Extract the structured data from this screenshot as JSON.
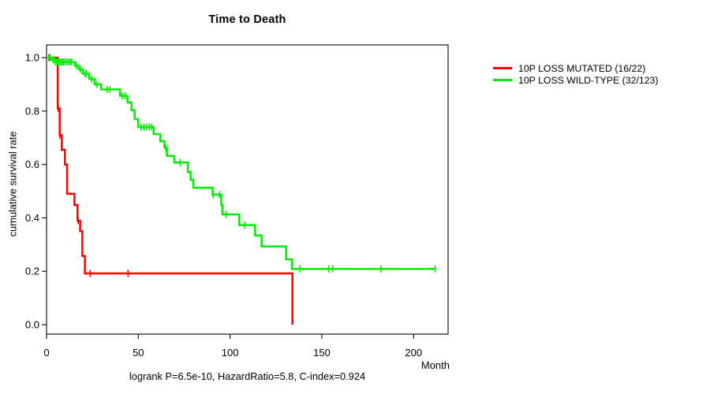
{
  "title": "Time to Death",
  "caption": "logrank P=6.5e-10, HazardRatio=5.8, C-index=0.924",
  "x_axis": {
    "label": "Month",
    "ticks": [
      0,
      50,
      100,
      150,
      200
    ]
  },
  "y_axis": {
    "label": "cumulative survival rate",
    "ticks": [
      "0.0",
      "0.2",
      "0.4",
      "0.6",
      "0.8",
      "1.0"
    ]
  },
  "chart_data": {
    "type": "line",
    "subtype": "kaplan-meier-step",
    "title": "Time to Death",
    "xlabel": "Month",
    "ylabel": "cumulative survival rate",
    "xlim": [
      0,
      219
    ],
    "ylim": [
      0.0,
      1.0
    ],
    "grid": false,
    "legend_position": "right-outside",
    "series": [
      {
        "name": "10P LOSS MUTATED (16/22)",
        "color": "#ff0000",
        "points": [
          [
            0,
            1.0
          ],
          [
            5.5,
            1.0
          ],
          [
            6.1,
            0.81
          ],
          [
            7.2,
            0.71
          ],
          [
            8.3,
            0.655
          ],
          [
            10,
            0.6
          ],
          [
            11.2,
            0.49
          ],
          [
            15.2,
            0.448
          ],
          [
            16.9,
            0.389
          ],
          [
            18.3,
            0.35
          ],
          [
            19.5,
            0.257
          ],
          [
            20.9,
            0.192
          ],
          [
            134,
            0.192
          ],
          [
            134,
            0.0
          ]
        ],
        "censor_marks": [
          [
            1.8,
            1.0
          ],
          [
            6.4,
            0.81
          ],
          [
            7.2,
            0.71
          ],
          [
            17.3,
            0.389
          ],
          [
            23.8,
            0.192
          ],
          [
            44.4,
            0.192
          ]
        ]
      },
      {
        "name": "10P LOSS WILD-TYPE (32/123)",
        "color": "#00ee00",
        "points": [
          [
            0,
            1.0
          ],
          [
            2.6,
            1.0
          ],
          [
            3.0,
            0.992
          ],
          [
            5.5,
            0.984
          ],
          [
            15.5,
            0.97
          ],
          [
            17.6,
            0.956
          ],
          [
            19.8,
            0.94
          ],
          [
            23.3,
            0.92
          ],
          [
            26.2,
            0.9
          ],
          [
            29.8,
            0.881
          ],
          [
            40,
            0.857
          ],
          [
            44.1,
            0.832
          ],
          [
            46.3,
            0.803
          ],
          [
            48,
            0.77
          ],
          [
            49.9,
            0.74
          ],
          [
            58.4,
            0.714
          ],
          [
            62,
            0.687
          ],
          [
            64.2,
            0.663
          ],
          [
            65.6,
            0.632
          ],
          [
            69.6,
            0.607
          ],
          [
            77,
            0.572
          ],
          [
            78.5,
            0.542
          ],
          [
            80,
            0.513
          ],
          [
            90.5,
            0.487
          ],
          [
            95.2,
            0.448
          ],
          [
            95.8,
            0.413
          ],
          [
            105,
            0.373
          ],
          [
            113.6,
            0.334
          ],
          [
            117.2,
            0.293
          ],
          [
            130.5,
            0.245
          ],
          [
            133.7,
            0.209
          ],
          [
            211.8,
            0.209
          ]
        ],
        "censor_marks": [
          [
            1.2,
            1.0
          ],
          [
            2.0,
            1.0
          ],
          [
            3.5,
            0.992
          ],
          [
            4.2,
            0.992
          ],
          [
            5.0,
            0.984
          ],
          [
            5.8,
            0.984
          ],
          [
            6.5,
            0.984
          ],
          [
            7.2,
            0.984
          ],
          [
            8.0,
            0.984
          ],
          [
            8.8,
            0.984
          ],
          [
            9.5,
            0.984
          ],
          [
            10.5,
            0.984
          ],
          [
            11.5,
            0.984
          ],
          [
            12.5,
            0.984
          ],
          [
            13.5,
            0.984
          ],
          [
            16.2,
            0.97
          ],
          [
            18.5,
            0.956
          ],
          [
            21.0,
            0.94
          ],
          [
            21.8,
            0.94
          ],
          [
            24.5,
            0.92
          ],
          [
            27.5,
            0.9
          ],
          [
            33.0,
            0.881
          ],
          [
            34.5,
            0.881
          ],
          [
            41.3,
            0.857
          ],
          [
            42.7,
            0.857
          ],
          [
            51.5,
            0.74
          ],
          [
            53.0,
            0.74
          ],
          [
            54.5,
            0.74
          ],
          [
            56.0,
            0.74
          ],
          [
            57.2,
            0.74
          ],
          [
            64.9,
            0.663
          ],
          [
            72.8,
            0.607
          ],
          [
            90.7,
            0.487
          ],
          [
            94.2,
            0.487
          ],
          [
            97.9,
            0.413
          ],
          [
            107.9,
            0.373
          ],
          [
            138,
            0.209
          ],
          [
            153.7,
            0.209
          ],
          [
            155.9,
            0.209
          ],
          [
            182.3,
            0.209
          ],
          [
            211.8,
            0.209
          ]
        ]
      }
    ]
  }
}
